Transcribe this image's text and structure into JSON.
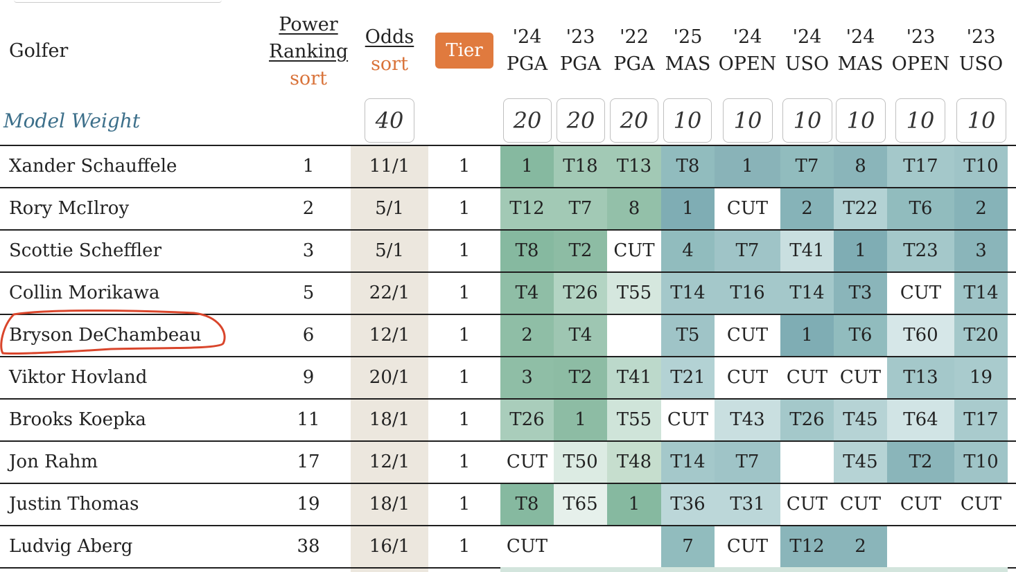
{
  "headers": {
    "golfer": "Golfer",
    "power_ranking": [
      "Power",
      "Ranking"
    ],
    "power_sort": "sort",
    "odds": "Odds",
    "odds_sort": "sort",
    "tier": "Tier",
    "events": [
      {
        "year": "'24",
        "name": "PGA"
      },
      {
        "year": "'23",
        "name": "PGA"
      },
      {
        "year": "'22",
        "name": "PGA"
      },
      {
        "year": "'25",
        "name": "MAS"
      },
      {
        "year": "'24",
        "name": "OPEN"
      },
      {
        "year": "'24",
        "name": "USO"
      },
      {
        "year": "'24",
        "name": "MAS"
      },
      {
        "year": "'23",
        "name": "OPEN"
      },
      {
        "year": "'23",
        "name": "USO"
      }
    ]
  },
  "model_weight": {
    "label": "Model Weight",
    "odds": "40",
    "events": [
      "20",
      "20",
      "20",
      "10",
      "10",
      "10",
      "10",
      "10",
      "10"
    ]
  },
  "rows": [
    {
      "name": "Xander Schauffele",
      "rank": "1",
      "odds": "11/1",
      "tier": "1",
      "results": [
        "1",
        "T18",
        "T13",
        "T8",
        "1",
        "T7",
        "8",
        "T17",
        "T10"
      ]
    },
    {
      "name": "Rory McIlroy",
      "rank": "2",
      "odds": "5/1",
      "tier": "1",
      "results": [
        "T12",
        "T7",
        "8",
        "1",
        "CUT",
        "2",
        "T22",
        "T6",
        "2"
      ]
    },
    {
      "name": "Scottie Scheffler",
      "rank": "3",
      "odds": "5/1",
      "tier": "1",
      "results": [
        "T8",
        "T2",
        "CUT",
        "4",
        "T7",
        "T41",
        "1",
        "T23",
        "3"
      ]
    },
    {
      "name": "Collin Morikawa",
      "rank": "5",
      "odds": "22/1",
      "tier": "1",
      "results": [
        "T4",
        "T26",
        "T55",
        "T14",
        "T16",
        "T14",
        "T3",
        "CUT",
        "T14"
      ]
    },
    {
      "name": "Bryson DeChambeau",
      "rank": "6",
      "odds": "12/1",
      "tier": "1",
      "results": [
        "2",
        "T4",
        "",
        "T5",
        "CUT",
        "1",
        "T6",
        "T60",
        "T20"
      ]
    },
    {
      "name": "Viktor Hovland",
      "rank": "9",
      "odds": "20/1",
      "tier": "1",
      "results": [
        "3",
        "T2",
        "T41",
        "T21",
        "CUT",
        "CUT",
        "CUT",
        "T13",
        "19"
      ]
    },
    {
      "name": "Brooks Koepka",
      "rank": "11",
      "odds": "18/1",
      "tier": "1",
      "results": [
        "T26",
        "1",
        "T55",
        "CUT",
        "T43",
        "T26",
        "T45",
        "T64",
        "T17"
      ]
    },
    {
      "name": "Jon Rahm",
      "rank": "17",
      "odds": "12/1",
      "tier": "1",
      "results": [
        "CUT",
        "T50",
        "T48",
        "T14",
        "T7",
        "",
        "T45",
        "T2",
        "T10"
      ]
    },
    {
      "name": "Justin Thomas",
      "rank": "19",
      "odds": "18/1",
      "tier": "1",
      "results": [
        "T8",
        "T65",
        "1",
        "T36",
        "T31",
        "CUT",
        "CUT",
        "CUT",
        "CUT"
      ]
    },
    {
      "name": "Ludvig Aberg",
      "rank": "38",
      "odds": "16/1",
      "tier": "1",
      "results": [
        "CUT",
        "",
        "",
        "7",
        "CUT",
        "T12",
        "2",
        "",
        ""
      ]
    }
  ],
  "colors": {
    "accent_orange": "#e07a3e",
    "model_weight_blue": "#3c6f8a",
    "odds_column_bg": "#ece7de",
    "annotation_red": "#d9452b"
  }
}
